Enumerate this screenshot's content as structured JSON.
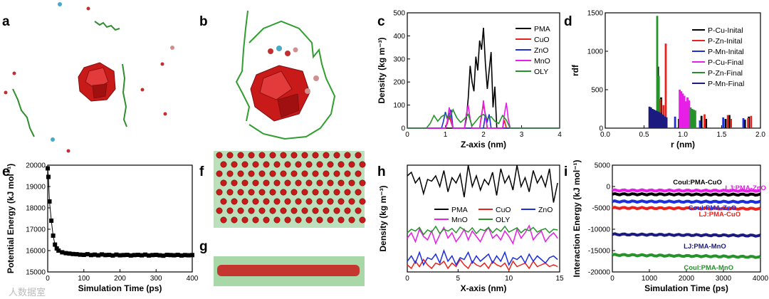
{
  "panel_labels": [
    "a",
    "b",
    "c",
    "d",
    "e",
    "f",
    "g",
    "h",
    "i"
  ],
  "colors": {
    "PMA": "#000000",
    "CuO": "#e8231d",
    "ZnO": "#1c2fdc",
    "MnO": "#e61ee6",
    "OLY": "#25922a",
    "P-Cu-Final": "#e61ee6",
    "P-Zn-Final": "#25922a",
    "P-Mn-Final": "#1a1a80"
  },
  "watermark": "人数据室",
  "chart_data": [
    {
      "id": "c",
      "type": "line",
      "xlabel": "Z-axis (nm)",
      "ylabel": "Density (kg m⁻³)",
      "xlim": [
        0,
        4
      ],
      "ylim": [
        0,
        500
      ],
      "xticks": [
        "0",
        "1",
        "2",
        "3",
        "4"
      ],
      "yticks": [
        "0",
        "100",
        "200",
        "300",
        "400",
        "500"
      ],
      "legend": [
        "PMA",
        "CuO",
        "ZnO",
        "MnO",
        "OLY"
      ],
      "series": [
        {
          "name": "PMA",
          "x": [
            0,
            1.3,
            1.4,
            1.5,
            1.55,
            1.6,
            1.65,
            1.7,
            1.75,
            1.8,
            1.85,
            1.9,
            1.95,
            2.0,
            2.05,
            2.1,
            2.15,
            2.2,
            2.25,
            2.3,
            2.35,
            2.4,
            4
          ],
          "y": [
            0,
            0,
            0,
            0,
            40,
            130,
            270,
            200,
            160,
            310,
            250,
            380,
            340,
            435,
            280,
            170,
            250,
            330,
            90,
            180,
            0,
            0,
            0
          ]
        },
        {
          "name": "CuO",
          "x": [
            0,
            1.0,
            1.05,
            1.1,
            1.15,
            1.2,
            1.9,
            1.95,
            2.0,
            2.05,
            2.1,
            2.5,
            2.55,
            2.6,
            4
          ],
          "y": [
            0,
            0,
            20,
            55,
            25,
            0,
            0,
            60,
            100,
            60,
            0,
            0,
            35,
            0,
            0
          ]
        },
        {
          "name": "ZnO",
          "x": [
            0,
            0.9,
            0.95,
            1.0,
            1.05,
            1.1,
            1.15,
            1.2,
            2.0,
            2.05,
            2.1,
            2.15,
            2.2,
            4
          ],
          "y": [
            0,
            0,
            30,
            70,
            40,
            60,
            80,
            0,
            0,
            60,
            30,
            60,
            0,
            0
          ]
        },
        {
          "name": "MnO",
          "x": [
            0,
            1.0,
            1.05,
            1.1,
            1.15,
            1.2,
            1.5,
            1.55,
            1.6,
            1.65,
            1.7,
            1.9,
            1.95,
            2.0,
            2.05,
            2.1,
            2.5,
            2.55,
            2.6,
            2.65,
            2.7,
            4
          ],
          "y": [
            0,
            0,
            30,
            90,
            40,
            0,
            0,
            60,
            100,
            40,
            0,
            0,
            50,
            120,
            50,
            0,
            0,
            60,
            110,
            40,
            0,
            0
          ]
        },
        {
          "name": "OLY",
          "x": [
            0,
            0.5,
            0.6,
            0.7,
            0.8,
            0.9,
            1.0,
            1.1,
            1.2,
            1.3,
            1.4,
            1.5,
            1.6,
            1.7,
            1.8,
            1.9,
            2.0,
            2.1,
            2.2,
            2.3,
            2.4,
            2.5,
            2.6,
            2.7,
            4
          ],
          "y": [
            0,
            0,
            20,
            55,
            30,
            50,
            60,
            40,
            80,
            45,
            25,
            40,
            60,
            10,
            30,
            50,
            60,
            40,
            50,
            30,
            20,
            55,
            35,
            0,
            0
          ]
        }
      ]
    },
    {
      "id": "d",
      "type": "bar",
      "xlabel": "r (nm)",
      "ylabel": "rdf",
      "xlim": [
        0,
        2.0
      ],
      "ylim": [
        0,
        1500
      ],
      "xticks": [
        "0.0",
        "0.5",
        "1.0",
        "1.5",
        "2.0"
      ],
      "yticks": [
        "0",
        "500",
        "1000",
        "1500"
      ],
      "legend": [
        "P-Cu-Inital",
        "P-Zn-Inital",
        "P-Mn-Inital",
        "P-Cu-Final",
        "P-Zn-Final",
        "P-Mn-Final"
      ],
      "series": [
        {
          "name": "P-Cu-Inital",
          "x": [
            0.68,
            0.72,
            0.95,
            1.24,
            1.3,
            1.55,
            1.6,
            1.8,
            1.85
          ],
          "y": [
            800,
            400,
            120,
            160,
            120,
            120,
            170,
            110,
            150
          ]
        },
        {
          "name": "P-Zn-Inital",
          "x": [
            0.71,
            0.75,
            0.78,
            1.05,
            1.28,
            1.58,
            1.62,
            1.84,
            1.88
          ],
          "y": [
            380,
            300,
            1100,
            220,
            180,
            170,
            120,
            130,
            160
          ]
        },
        {
          "name": "P-Mn-Inital",
          "x": [
            0.64,
            0.7,
            0.9,
            1.22,
            1.52,
            1.78
          ],
          "y": [
            150,
            200,
            150,
            100,
            140,
            130
          ]
        },
        {
          "name": "P-Cu-Final",
          "x": [
            0.96,
            0.98,
            1.0,
            1.02,
            1.04,
            1.06,
            1.08
          ],
          "y": [
            500,
            480,
            450,
            420,
            350,
            400,
            360
          ]
        },
        {
          "name": "P-Zn-Final",
          "x": [
            0.67,
            0.69,
            1.1,
            1.12,
            1.14,
            1.16
          ],
          "y": [
            1460,
            680,
            270,
            250,
            240,
            230
          ]
        },
        {
          "name": "P-Mn-Final",
          "x": [
            0.57,
            0.59,
            0.61,
            0.63,
            0.65,
            0.67,
            0.69,
            0.71,
            0.73,
            0.75,
            0.77,
            0.79
          ],
          "y": [
            280,
            270,
            250,
            240,
            230,
            220,
            210,
            200,
            180,
            170,
            150,
            140
          ]
        }
      ]
    },
    {
      "id": "e",
      "type": "scatter",
      "xlabel": "Simulation Time (ps)",
      "ylabel": "Potential Energy (kJ mol⁻¹)",
      "xlim": [
        0,
        400
      ],
      "ylim": [
        15000,
        20000
      ],
      "xticks": [
        "0",
        "100",
        "200",
        "300",
        "400"
      ],
      "yticks": [
        "15000",
        "16000",
        "17000",
        "18000",
        "19000",
        "20000"
      ],
      "series": [
        {
          "name": "Potential Energy",
          "x": [
            0,
            2,
            5,
            10,
            15,
            20,
            25,
            30,
            40,
            50,
            60,
            70,
            80,
            90,
            100,
            110,
            120,
            130,
            140,
            150,
            160,
            170,
            180,
            190,
            200,
            210,
            220,
            230,
            240,
            250,
            260,
            270,
            280,
            290,
            300,
            310,
            320,
            330,
            340,
            350,
            360,
            370,
            380,
            390,
            400
          ],
          "y": [
            19850,
            19450,
            18300,
            17400,
            16700,
            16280,
            16100,
            16000,
            15920,
            15880,
            15860,
            15840,
            15830,
            15810,
            15800,
            15830,
            15790,
            15810,
            15780,
            15820,
            15790,
            15800,
            15770,
            15810,
            15780,
            15790,
            15800,
            15770,
            15790,
            15800,
            15780,
            15810,
            15770,
            15790,
            15800,
            15780,
            15760,
            15800,
            15790,
            15780,
            15800,
            15770,
            15790,
            15780,
            15790
          ]
        }
      ]
    },
    {
      "id": "h",
      "type": "line",
      "xlabel": "X-axis (nm)",
      "ylabel": "Density (kg m⁻³)",
      "xlim": [
        0,
        15
      ],
      "ylim": [
        0,
        300
      ],
      "xticks": [
        "0",
        "5",
        "10",
        "15"
      ],
      "yticks": [],
      "legend": [
        "PMA",
        "CuO",
        "ZnO",
        "MnO",
        "OLY"
      ],
      "series": [
        {
          "name": "PMA",
          "x": [
            0,
            0.4,
            0.8,
            1.2,
            1.6,
            2,
            2.4,
            2.8,
            3.2,
            3.6,
            4,
            4.4,
            4.8,
            5.2,
            5.6,
            6,
            6.4,
            6.8,
            7.2,
            7.6,
            8,
            8.4,
            8.8,
            9.2,
            9.6,
            10,
            10.4,
            10.8,
            11.2,
            11.6,
            12,
            12.4,
            12.8,
            13.2,
            13.6,
            14,
            14.4,
            14.8
          ],
          "y": [
            270,
            280,
            250,
            265,
            220,
            260,
            255,
            270,
            240,
            285,
            225,
            265,
            250,
            275,
            210,
            300,
            240,
            270,
            230,
            260,
            245,
            280,
            215,
            290,
            250,
            270,
            230,
            300,
            240,
            265,
            225,
            285,
            250,
            270,
            240,
            290,
            195,
            250
          ]
        },
        {
          "name": "CuO",
          "x": [
            0,
            0.4,
            0.8,
            1.2,
            1.6,
            2,
            2.4,
            2.8,
            3.2,
            3.6,
            4,
            4.4,
            4.8,
            5.2,
            5.6,
            6,
            6.4,
            6.8,
            7.2,
            7.6,
            8,
            8.4,
            8.8,
            9.2,
            9.6,
            10,
            10.4,
            10.8,
            11.2,
            11.6,
            12,
            12.4,
            12.8,
            13.2,
            13.6,
            14,
            14.4,
            14.8
          ],
          "y": [
            20,
            10,
            30,
            15,
            35,
            20,
            10,
            25,
            20,
            30,
            10,
            25,
            15,
            35,
            20,
            10,
            30,
            20,
            15,
            25,
            10,
            30,
            20,
            15,
            25,
            5,
            30,
            15,
            20,
            25,
            10,
            30,
            15,
            20,
            25,
            15,
            20,
            15
          ]
        },
        {
          "name": "ZnO",
          "x": [
            0,
            0.4,
            0.8,
            1.2,
            1.6,
            2,
            2.4,
            2.8,
            3.2,
            3.6,
            4,
            4.4,
            4.8,
            5.2,
            5.6,
            6,
            6.4,
            6.8,
            7.2,
            7.6,
            8,
            8.4,
            8.8,
            9.2,
            9.6,
            10,
            10.4,
            10.8,
            11.2,
            11.6,
            12,
            12.4,
            12.8,
            13.2,
            13.6,
            14,
            14.4,
            14.8
          ],
          "y": [
            30,
            45,
            25,
            55,
            20,
            40,
            35,
            50,
            25,
            60,
            30,
            45,
            20,
            40,
            35,
            55,
            25,
            45,
            30,
            40,
            50,
            25,
            45,
            30,
            55,
            20,
            40,
            35,
            45,
            25,
            50,
            30,
            45,
            35,
            25,
            40,
            45,
            35
          ]
        },
        {
          "name": "MnO",
          "x": [
            0,
            0.4,
            0.8,
            1.2,
            1.6,
            2,
            2.4,
            2.8,
            3.2,
            3.6,
            4,
            4.4,
            4.8,
            5.2,
            5.6,
            6,
            6.4,
            6.8,
            7.2,
            7.6,
            8,
            8.4,
            8.8,
            9.2,
            9.6,
            10,
            10.4,
            10.8,
            11.2,
            11.6,
            12,
            12.4,
            12.8,
            13.2,
            13.6,
            14,
            14.4,
            14.8
          ],
          "y": [
            95,
            110,
            85,
            120,
            100,
            90,
            115,
            80,
            105,
            125,
            95,
            110,
            85,
            100,
            120,
            90,
            115,
            100,
            85,
            110,
            125,
            95,
            105,
            90,
            115,
            100,
            80,
            120,
            95,
            110,
            130,
            90,
            105,
            115,
            85,
            100,
            110,
            95
          ]
        },
        {
          "name": "OLY",
          "x": [
            0,
            0.4,
            0.8,
            1.2,
            1.6,
            2,
            2.4,
            2.8,
            3.2,
            3.6,
            4,
            4.4,
            4.8,
            5.2,
            5.6,
            6,
            6.4,
            6.8,
            7.2,
            7.6,
            8,
            8.4,
            8.8,
            9.2,
            9.6,
            10,
            10.4,
            10.8,
            11.2,
            11.6,
            12,
            12.4,
            12.8,
            13.2,
            13.6,
            14,
            14.4,
            14.8
          ],
          "y": [
            110,
            120,
            115,
            125,
            105,
            118,
            112,
            128,
            108,
            120,
            115,
            122,
            110,
            126,
            118,
            112,
            124,
            108,
            120,
            116,
            125,
            110,
            122,
            114,
            128,
            112,
            118,
            124,
            110,
            120,
            116,
            125,
            112,
            118,
            122,
            110,
            120,
            118
          ]
        }
      ]
    },
    {
      "id": "i",
      "type": "line",
      "xlabel": "Simulation Time (ps)",
      "ylabel": "Interaction Energy (kJ mol⁻¹)",
      "xlim": [
        0,
        4000
      ],
      "ylim": [
        -20000,
        5000
      ],
      "xticks": [
        "0",
        "1000",
        "2000",
        "3000",
        "4000"
      ],
      "yticks": [
        "-20000",
        "-15000",
        "-10000",
        "-5000",
        "0",
        "5000"
      ],
      "series": [
        {
          "name": "LJ:PMA-ZnO",
          "x": [
            0,
            4000
          ],
          "y": [
            -900,
            -1000
          ]
        },
        {
          "name": "Coul:PMA-CuO",
          "x": [
            0,
            4000
          ],
          "y": [
            -1800,
            -1900
          ]
        },
        {
          "name": "Coul:PMA-ZnO",
          "x": [
            0,
            4000
          ],
          "y": [
            -3500,
            -3600
          ]
        },
        {
          "name": "LJ:PMA-CuO",
          "x": [
            0,
            4000
          ],
          "y": [
            -5000,
            -5200
          ]
        },
        {
          "name": "LJ:PMA-MnO",
          "x": [
            0,
            4000
          ],
          "y": [
            -11200,
            -11500
          ]
        },
        {
          "name": "Coul:PMA-MnO",
          "x": [
            0,
            4000
          ],
          "y": [
            -16000,
            -16500
          ]
        }
      ],
      "annotations": [
        "LJ:PMA-ZnO",
        "Coul:PMA-CuO",
        "Coul:PMA-ZnO",
        "LJ:PMA-CuO",
        "LJ:PMA-MnO",
        "Coul:PMA-MnO"
      ]
    }
  ]
}
